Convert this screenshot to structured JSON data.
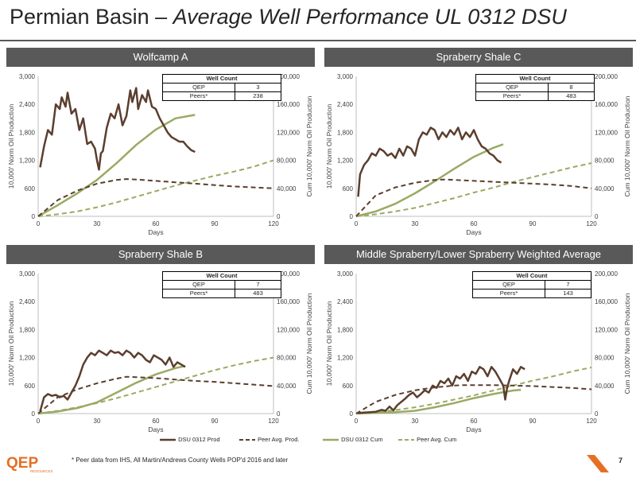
{
  "slide": {
    "title_plain": "Permian Basin – ",
    "title_italic": "Average Well Performance UL 0312 DSU",
    "footnote": "* Peer data from IHS, All Martin/Andrews County Wells POP'd 2016 and later",
    "page_number": "7",
    "logo_text": "QEP",
    "logo_subtext": "RESOURCES"
  },
  "colors": {
    "dsu_prod": "#5b3e2e",
    "peer_prod": "#5b3e2e",
    "dsu_cum": "#9aaa64",
    "peer_cum": "#9aaa64",
    "header_bg": "#595959",
    "logo_orange": "#e66f24"
  },
  "legend": [
    {
      "label": "DSU 0312 Prod",
      "style": "solid-brown"
    },
    {
      "label": "Peer Avg. Prod.",
      "style": "dashed-brown"
    },
    {
      "label": "DSU 0312 Cum",
      "style": "solid-green"
    },
    {
      "label": "Peer Avg. Cum",
      "style": "dashed-green"
    }
  ],
  "chart_data": [
    {
      "type": "line",
      "title": "Wolfcamp A",
      "xlabel": "Days",
      "ylabel": "10,000' Norm Oil Production",
      "y2label": "Cum 10,000' Norm Oil Production",
      "xlim": [
        0,
        120
      ],
      "ylim": [
        0,
        3000
      ],
      "y2lim": [
        0,
        200000
      ],
      "xticks": [
        "0",
        "30",
        "60",
        "90",
        "120"
      ],
      "yticks": [
        "0",
        "600",
        "1,200",
        "1,800",
        "2,400",
        "3,000"
      ],
      "y2ticks": [
        "0",
        "40,000",
        "80,000",
        "120,000",
        "160,000",
        "200,000"
      ],
      "well_count": {
        "header": "Well Count",
        "rows": [
          [
            "QEP",
            "3"
          ],
          [
            "Peers*",
            "238"
          ]
        ]
      },
      "series": [
        {
          "name": "DSU 0312 Prod",
          "axis": "y",
          "x": [
            1,
            3,
            5,
            7,
            9,
            11,
            12,
            14,
            15,
            17,
            19,
            21,
            23,
            25,
            27,
            29,
            30,
            31,
            32,
            33,
            35,
            37,
            39,
            41,
            43,
            45,
            47,
            48,
            50,
            51,
            53,
            55,
            56,
            58,
            60,
            62,
            64,
            66,
            68,
            70,
            72,
            74,
            76,
            78,
            80
          ],
          "y": [
            1050,
            1500,
            1850,
            1750,
            2400,
            2300,
            2550,
            2350,
            2650,
            2200,
            2300,
            1850,
            2100,
            1550,
            1600,
            1450,
            1200,
            1000,
            1350,
            1400,
            1900,
            2200,
            2100,
            2400,
            1950,
            2150,
            2700,
            2450,
            2750,
            2300,
            2600,
            2450,
            2700,
            2350,
            2300,
            2100,
            1950,
            1800,
            1700,
            1650,
            1600,
            1600,
            1500,
            1420,
            1380
          ]
        },
        {
          "name": "Peer Avg. Prod.",
          "axis": "y",
          "x": [
            0,
            10,
            20,
            30,
            40,
            45,
            50,
            60,
            70,
            80,
            90,
            100,
            110,
            120
          ],
          "y": [
            0,
            350,
            550,
            700,
            780,
            800,
            790,
            760,
            730,
            700,
            670,
            640,
            620,
            600
          ]
        },
        {
          "name": "DSU 0312 Cum",
          "axis": "y2",
          "x": [
            0,
            10,
            20,
            30,
            40,
            50,
            60,
            70,
            80
          ],
          "y": [
            0,
            16000,
            33000,
            52000,
            76000,
            102000,
            124000,
            140000,
            145000
          ]
        },
        {
          "name": "Peer Avg. Cum",
          "axis": "y2",
          "x": [
            0,
            10,
            20,
            30,
            40,
            50,
            60,
            70,
            80,
            90,
            100,
            110,
            120
          ],
          "y": [
            0,
            3000,
            7000,
            13000,
            20000,
            28000,
            36000,
            44000,
            51000,
            58000,
            64000,
            71000,
            80000
          ]
        }
      ]
    },
    {
      "type": "line",
      "title": "Spraberry Shale C",
      "xlabel": "Days",
      "ylabel": "10,000' Norm Oil Production",
      "y2label": "Cum 10,000' Norm Oil Production",
      "xlim": [
        0,
        120
      ],
      "ylim": [
        0,
        3000
      ],
      "y2lim": [
        0,
        200000
      ],
      "xticks": [
        "0",
        "30",
        "60",
        "90",
        "120"
      ],
      "yticks": [
        "0",
        "600",
        "1,200",
        "1,800",
        "2,400",
        "3,000"
      ],
      "y2ticks": [
        "0",
        "40,000",
        "80,000",
        "120,000",
        "160,000",
        "200,000"
      ],
      "well_count": {
        "header": "Well Count",
        "rows": [
          [
            "QEP",
            "8"
          ],
          [
            "Peers*",
            "483"
          ]
        ]
      },
      "series": [
        {
          "name": "DSU 0312 Prod",
          "axis": "y",
          "x": [
            1,
            2,
            4,
            6,
            8,
            10,
            12,
            14,
            16,
            18,
            20,
            22,
            24,
            26,
            28,
            30,
            32,
            34,
            36,
            38,
            40,
            42,
            44,
            46,
            48,
            50,
            52,
            54,
            56,
            58,
            60,
            62,
            64,
            66,
            68,
            70,
            72,
            74
          ],
          "y": [
            420,
            900,
            1100,
            1200,
            1350,
            1300,
            1450,
            1400,
            1300,
            1350,
            1250,
            1450,
            1300,
            1500,
            1450,
            1300,
            1650,
            1800,
            1750,
            1900,
            1850,
            1650,
            1800,
            1700,
            1850,
            1750,
            1900,
            1650,
            1800,
            1700,
            1850,
            1650,
            1500,
            1450,
            1350,
            1300,
            1200,
            1150
          ]
        },
        {
          "name": "Peer Avg. Prod.",
          "axis": "y",
          "x": [
            0,
            10,
            20,
            30,
            40,
            45,
            50,
            60,
            70,
            80,
            90,
            100,
            110,
            120
          ],
          "y": [
            0,
            450,
            620,
            720,
            780,
            790,
            780,
            760,
            740,
            720,
            700,
            680,
            650,
            600
          ]
        },
        {
          "name": "DSU 0312 Cum",
          "axis": "y2",
          "x": [
            0,
            10,
            20,
            30,
            40,
            50,
            60,
            70,
            75
          ],
          "y": [
            0,
            7000,
            18000,
            33000,
            50000,
            68000,
            85000,
            98000,
            103000
          ]
        },
        {
          "name": "Peer Avg. Cum",
          "axis": "y2",
          "x": [
            0,
            10,
            20,
            30,
            40,
            50,
            60,
            70,
            80,
            90,
            100,
            110,
            120
          ],
          "y": [
            0,
            3000,
            7000,
            12000,
            19000,
            26000,
            34000,
            41000,
            49000,
            56000,
            63000,
            70000,
            76000
          ]
        }
      ]
    },
    {
      "type": "line",
      "title": "Spraberry Shale B",
      "xlabel": "Days",
      "ylabel": "10,000' Norm Oil Production",
      "y2label": "Cum 10,000' Norm Oil Production",
      "xlim": [
        0,
        120
      ],
      "ylim": [
        0,
        3000
      ],
      "y2lim": [
        0,
        200000
      ],
      "xticks": [
        "0",
        "30",
        "60",
        "90",
        "120"
      ],
      "yticks": [
        "0",
        "600",
        "1,200",
        "1,800",
        "2,400",
        "3,000"
      ],
      "y2ticks": [
        "0",
        "40,000",
        "80,000",
        "120,000",
        "160,000",
        "200,000"
      ],
      "well_count": {
        "header": "Well Count",
        "rows": [
          [
            "QEP",
            "7"
          ],
          [
            "Peers*",
            "483"
          ]
        ]
      },
      "series": [
        {
          "name": "DSU 0312 Prod",
          "axis": "y",
          "x": [
            1,
            3,
            5,
            7,
            9,
            11,
            13,
            15,
            17,
            19,
            21,
            23,
            25,
            27,
            29,
            31,
            33,
            35,
            37,
            39,
            41,
            43,
            45,
            47,
            49,
            51,
            53,
            55,
            57,
            59,
            61,
            63,
            65,
            67,
            69,
            71,
            73,
            75
          ],
          "y": [
            50,
            350,
            420,
            380,
            400,
            350,
            380,
            300,
            450,
            600,
            800,
            1050,
            1200,
            1300,
            1250,
            1350,
            1300,
            1250,
            1350,
            1300,
            1320,
            1250,
            1350,
            1300,
            1200,
            1300,
            1250,
            1150,
            1100,
            1250,
            1200,
            1150,
            1050,
            1200,
            1000,
            1100,
            1050,
            1000
          ]
        },
        {
          "name": "Peer Avg. Prod.",
          "axis": "y",
          "x": [
            0,
            10,
            20,
            30,
            40,
            45,
            50,
            60,
            70,
            80,
            90,
            100,
            110,
            120
          ],
          "y": [
            0,
            350,
            520,
            650,
            750,
            790,
            780,
            760,
            730,
            700,
            680,
            650,
            620,
            590
          ]
        },
        {
          "name": "DSU 0312 Cum",
          "axis": "y2",
          "x": [
            0,
            10,
            20,
            30,
            40,
            50,
            60,
            70,
            75
          ],
          "y": [
            0,
            3000,
            8000,
            16000,
            30000,
            44000,
            56000,
            65000,
            68000
          ]
        },
        {
          "name": "Peer Avg. Cum",
          "axis": "y2",
          "x": [
            0,
            10,
            20,
            30,
            40,
            50,
            60,
            70,
            80,
            90,
            100,
            110,
            120
          ],
          "y": [
            0,
            4000,
            9000,
            15000,
            22000,
            30000,
            38000,
            46000,
            54000,
            62000,
            69000,
            75000,
            80000
          ]
        }
      ]
    },
    {
      "type": "line",
      "title": "Middle Spraberry/Lower Spraberry Weighted Average",
      "xlabel": "Days",
      "ylabel": "10,000' Norm Oil Production",
      "y2label": "Cum 10,000' Norm Oil Production",
      "xlim": [
        0,
        120
      ],
      "ylim": [
        0,
        3000
      ],
      "y2lim": [
        0,
        200000
      ],
      "xticks": [
        "0",
        "30",
        "60",
        "90",
        "120"
      ],
      "yticks": [
        "0",
        "600",
        "1,200",
        "1,800",
        "2,400",
        "3,000"
      ],
      "y2ticks": [
        "0",
        "40,000",
        "80,000",
        "120,000",
        "160,000",
        "200,000"
      ],
      "well_count": {
        "header": "Well Count",
        "rows": [
          [
            "QEP",
            "7"
          ],
          [
            "Peers*",
            "143"
          ]
        ]
      },
      "series": [
        {
          "name": "DSU 0312 Prod",
          "axis": "y",
          "x": [
            1,
            4,
            7,
            10,
            13,
            15,
            17,
            19,
            21,
            23,
            25,
            27,
            29,
            31,
            33,
            35,
            37,
            39,
            41,
            43,
            45,
            47,
            49,
            51,
            53,
            55,
            57,
            59,
            61,
            63,
            65,
            67,
            69,
            71,
            73,
            75,
            76,
            77,
            78,
            80,
            82,
            84,
            86
          ],
          "y": [
            10,
            20,
            30,
            40,
            80,
            60,
            150,
            70,
            180,
            250,
            320,
            400,
            450,
            350,
            420,
            500,
            450,
            600,
            550,
            700,
            650,
            750,
            600,
            800,
            750,
            850,
            700,
            900,
            850,
            1000,
            950,
            800,
            1000,
            900,
            750,
            600,
            300,
            550,
            700,
            950,
            850,
            1000,
            950
          ]
        },
        {
          "name": "Peer Avg. Prod.",
          "axis": "y",
          "x": [
            0,
            10,
            20,
            30,
            40,
            50,
            55,
            60,
            70,
            80,
            90,
            100,
            110,
            120
          ],
          "y": [
            0,
            250,
            400,
            500,
            560,
            600,
            610,
            610,
            610,
            600,
            590,
            570,
            550,
            520
          ]
        },
        {
          "name": "DSU 0312 Cum",
          "axis": "y2",
          "x": [
            0,
            10,
            20,
            30,
            40,
            50,
            60,
            70,
            80,
            84
          ],
          "y": [
            0,
            1000,
            2000,
            4000,
            9000,
            15000,
            22000,
            28000,
            33000,
            34000
          ]
        },
        {
          "name": "Peer Avg. Cum",
          "axis": "y2",
          "x": [
            0,
            10,
            20,
            30,
            40,
            50,
            60,
            70,
            80,
            90,
            100,
            110,
            120
          ],
          "y": [
            0,
            2000,
            5000,
            9000,
            14000,
            20000,
            26000,
            33000,
            40000,
            47000,
            53000,
            60000,
            66000
          ]
        }
      ]
    }
  ]
}
